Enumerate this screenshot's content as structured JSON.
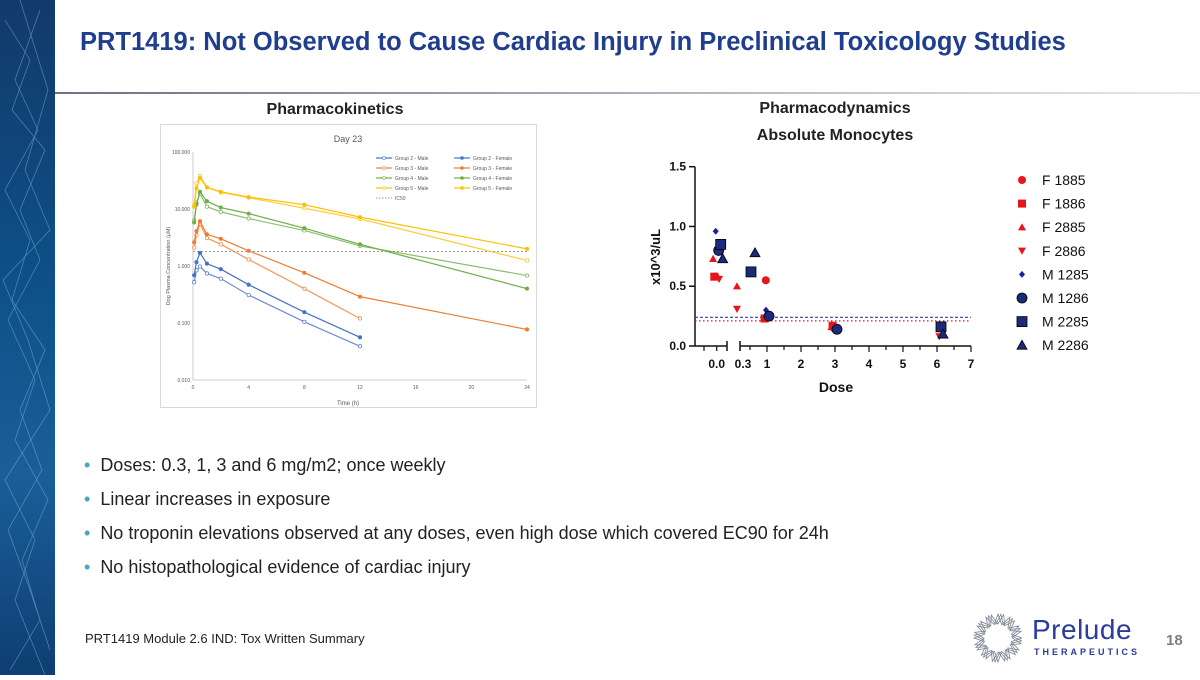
{
  "title": "PRT1419: Not Observed to Cause Cardiac Injury in Preclinical Toxicology Studies",
  "pk_heading": "Pharmacokinetics",
  "pd_heading": "Pharmacodynamics",
  "bullets": [
    "Doses: 0.3, 1, 3 and 6 mg/m2; once weekly",
    "Linear increases in exposure",
    "No troponin elevations observed at any doses, even high dose which covered EC90 for 24h",
    "No histopathological evidence of cardiac injury"
  ],
  "footer": "PRT1419 Module 2.6 IND: Tox Written Summary",
  "page_number": "18",
  "logo": {
    "name": "Prelude",
    "sub": "THERAPEUTICS",
    "color": "#2b3a9b"
  },
  "chart_data": [
    {
      "type": "line",
      "title": "Day 23",
      "xlabel": "Time (h)",
      "ylabel": "Dog Plasma Concentration (µM)",
      "yscale": "log",
      "ylim": [
        0.01,
        100
      ],
      "xlim": [
        0,
        24
      ],
      "xticks": [
        "0",
        "4",
        "8",
        "12",
        "16",
        "20",
        "24"
      ],
      "yticks": [
        "0.010",
        "0.100",
        "1.000",
        "10.000",
        "100.000"
      ],
      "grid": false,
      "legend": "top-right",
      "x": [
        0.083,
        0.25,
        0.5,
        1,
        2,
        4,
        8,
        12,
        24
      ],
      "series": [
        {
          "name": "Group 2 - Male",
          "color": "#4472c4",
          "marker": "open",
          "values": [
            0.52,
            0.84,
            0.98,
            0.74,
            0.6,
            0.31,
            0.105,
            0.039,
            null
          ]
        },
        {
          "name": "Group 2 - Female",
          "color": "#4472c4",
          "marker": "filled",
          "values": [
            0.69,
            1.17,
            1.7,
            1.1,
            0.88,
            0.47,
            0.155,
            0.056,
            null
          ]
        },
        {
          "name": "Group 3 - Male",
          "color": "#ed7d31",
          "marker": "open",
          "values": [
            2.1,
            3.5,
            5.5,
            3.1,
            2.4,
            1.3,
            0.4,
            0.12,
            null
          ]
        },
        {
          "name": "Group 3 - Female",
          "color": "#ed7d31",
          "marker": "filled",
          "values": [
            2.6,
            4.1,
            6.1,
            3.6,
            3.0,
            1.85,
            0.76,
            0.29,
            0.077
          ]
        },
        {
          "name": "Group 4 - Male",
          "color": "#70ad47",
          "marker": "open",
          "values": [
            6.3,
            13,
            18.6,
            11,
            8.9,
            6.8,
            4.2,
            2.25,
            0.68
          ]
        },
        {
          "name": "Group 4 - Female",
          "color": "#70ad47",
          "marker": "filled",
          "values": [
            5.8,
            12,
            20,
            13.7,
            10.6,
            8.3,
            4.6,
            2.4,
            0.4
          ]
        },
        {
          "name": "Group 5 - Male",
          "color": "#ffc000",
          "marker": "open",
          "values": [
            11.6,
            28,
            38,
            24,
            19.6,
            15.8,
            10.3,
            6.7,
            1.25
          ]
        },
        {
          "name": "Group 5 - Female",
          "color": "#ffc000",
          "marker": "filled",
          "values": [
            11,
            23,
            35,
            24,
            20,
            16.2,
            11.9,
            7.2,
            2.0
          ]
        }
      ],
      "reference_lines": [
        {
          "name": "IC50",
          "value": 1.8,
          "color": "#999999",
          "style": "dotted"
        }
      ]
    },
    {
      "type": "scatter",
      "title": "Absolute Monocytes",
      "xlabel": "Dose",
      "ylabel": "x10^3/uL",
      "ylim": [
        0,
        1.5
      ],
      "yticks": [
        "0.0",
        "0.5",
        "1.0",
        "1.5"
      ],
      "xticks": [
        "0.0",
        "0.3",
        "1",
        "2",
        "3",
        "4",
        "5",
        "6",
        "7"
      ],
      "legend": "right",
      "series": [
        {
          "name": "F 1885",
          "color": "#e8141c",
          "marker": "circle",
          "points": [
            [
              0,
              0.58
            ],
            [
              1,
              0.55
            ],
            [
              3,
              0.15
            ]
          ]
        },
        {
          "name": "F 1886",
          "color": "#e8141c",
          "marker": "square",
          "points": [
            [
              0,
              0.58
            ],
            [
              1,
              0.23
            ],
            [
              3,
              0.17
            ]
          ]
        },
        {
          "name": "F 2885",
          "color": "#e8141c",
          "marker": "triangle",
          "points": [
            [
              0,
              0.73
            ],
            [
              0.3,
              0.5
            ],
            [
              3,
              0.16
            ]
          ]
        },
        {
          "name": "F 2886",
          "color": "#e8141c",
          "marker": "triangle-down",
          "points": [
            [
              0,
              0.56
            ],
            [
              0.3,
              0.31
            ],
            [
              6,
              0.08
            ]
          ]
        },
        {
          "name": "M 1285",
          "color": "#1b1f9e",
          "marker": "diamond",
          "points": [
            [
              0,
              0.96
            ],
            [
              1,
              0.3
            ]
          ]
        },
        {
          "name": "M 1286",
          "color": "#1b2a7a",
          "marker": "circle",
          "points": [
            [
              0,
              0.8
            ],
            [
              1,
              0.25
            ],
            [
              3,
              0.14
            ]
          ]
        },
        {
          "name": "M 2285",
          "color": "#1b2a7a",
          "marker": "square",
          "points": [
            [
              0,
              0.85
            ],
            [
              0.3,
              0.62
            ],
            [
              6,
              0.16
            ]
          ]
        },
        {
          "name": "M 2286",
          "color": "#1b2a7a",
          "marker": "triangle",
          "points": [
            [
              0,
              0.73
            ],
            [
              0.3,
              0.78
            ],
            [
              6,
              0.1
            ]
          ]
        }
      ],
      "reference_lines": [
        {
          "value": 0.24,
          "color": "#3b3fae",
          "style": "dashed"
        },
        {
          "value": 0.21,
          "color": "#e8141c",
          "style": "dotted"
        }
      ]
    }
  ]
}
